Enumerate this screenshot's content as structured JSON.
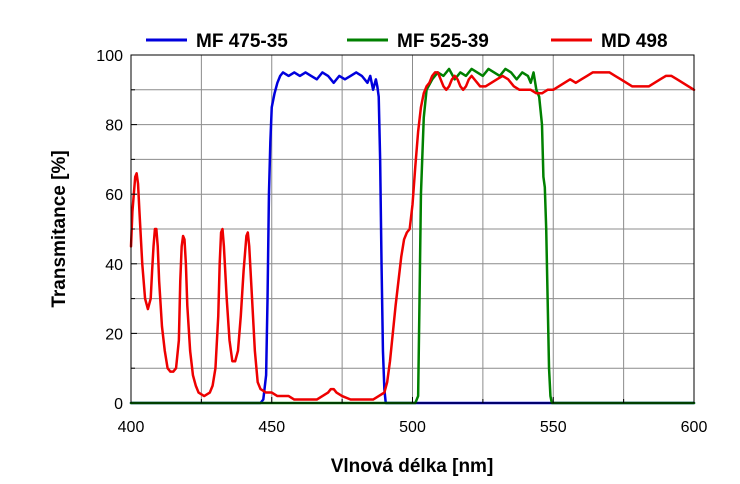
{
  "chart_data": {
    "type": "line",
    "title": "",
    "xlabel": "Vlnová délka [nm]",
    "ylabel": "Transmitance [%]",
    "xlim": [
      400,
      600
    ],
    "ylim": [
      0,
      100
    ],
    "x_ticks": [
      400,
      450,
      500,
      550,
      600
    ],
    "y_ticks": [
      0,
      20,
      40,
      60,
      80,
      100
    ],
    "grid": true,
    "legend_position": "top",
    "series": [
      {
        "name": "MF 475-35",
        "color": "#0000dd",
        "points": [
          [
            400,
            0
          ],
          [
            446,
            0
          ],
          [
            447,
            1
          ],
          [
            448,
            8
          ],
          [
            448.5,
            30
          ],
          [
            449,
            60
          ],
          [
            449.5,
            75
          ],
          [
            450,
            85
          ],
          [
            451,
            89
          ],
          [
            452,
            92
          ],
          [
            453,
            94
          ],
          [
            454,
            95
          ],
          [
            456,
            94
          ],
          [
            458,
            95
          ],
          [
            460,
            94
          ],
          [
            462,
            95
          ],
          [
            464,
            94
          ],
          [
            466,
            93
          ],
          [
            468,
            95
          ],
          [
            470,
            94
          ],
          [
            472,
            92
          ],
          [
            474,
            94
          ],
          [
            476,
            93
          ],
          [
            478,
            94
          ],
          [
            480,
            95
          ],
          [
            482,
            94
          ],
          [
            484,
            92
          ],
          [
            485,
            94
          ],
          [
            486,
            90
          ],
          [
            487,
            93
          ],
          [
            487.5,
            91
          ],
          [
            488,
            88
          ],
          [
            488.5,
            70
          ],
          [
            489,
            40
          ],
          [
            489.5,
            15
          ],
          [
            490,
            4
          ],
          [
            490.5,
            0
          ],
          [
            600,
            0
          ]
        ]
      },
      {
        "name": "MF 525-39",
        "color": "#008000",
        "points": [
          [
            400,
            0
          ],
          [
            501,
            0
          ],
          [
            502,
            2
          ],
          [
            502.5,
            30
          ],
          [
            503,
            60
          ],
          [
            504,
            82
          ],
          [
            505,
            90
          ],
          [
            507,
            93
          ],
          [
            509,
            95
          ],
          [
            511,
            94
          ],
          [
            513,
            96
          ],
          [
            515,
            93
          ],
          [
            517,
            95
          ],
          [
            519,
            94
          ],
          [
            521,
            96
          ],
          [
            523,
            95
          ],
          [
            525,
            94
          ],
          [
            527,
            96
          ],
          [
            529,
            95
          ],
          [
            531,
            94
          ],
          [
            533,
            96
          ],
          [
            535,
            95
          ],
          [
            537,
            93
          ],
          [
            539,
            95
          ],
          [
            541,
            94
          ],
          [
            542,
            92
          ],
          [
            543,
            95
          ],
          [
            544,
            90
          ],
          [
            545,
            88
          ],
          [
            546,
            80
          ],
          [
            546.5,
            65
          ],
          [
            547,
            62
          ],
          [
            547.5,
            50
          ],
          [
            548,
            30
          ],
          [
            548.5,
            10
          ],
          [
            549,
            2
          ],
          [
            549.5,
            0
          ],
          [
            600,
            0
          ]
        ]
      },
      {
        "name": "MD 498",
        "color": "#ee0000",
        "points": [
          [
            400,
            45
          ],
          [
            400.5,
            55
          ],
          [
            401,
            60
          ],
          [
            401.5,
            65
          ],
          [
            402,
            66
          ],
          [
            402.5,
            63
          ],
          [
            403,
            55
          ],
          [
            404,
            40
          ],
          [
            405,
            30
          ],
          [
            406,
            27
          ],
          [
            407,
            30
          ],
          [
            407.5,
            38
          ],
          [
            408,
            45
          ],
          [
            408.5,
            50
          ],
          [
            409,
            50
          ],
          [
            409.5,
            45
          ],
          [
            410,
            35
          ],
          [
            411,
            22
          ],
          [
            412,
            15
          ],
          [
            413,
            10
          ],
          [
            414,
            9
          ],
          [
            415,
            9
          ],
          [
            416,
            10
          ],
          [
            417,
            18
          ],
          [
            417.5,
            35
          ],
          [
            418,
            45
          ],
          [
            418.5,
            48
          ],
          [
            419,
            47
          ],
          [
            419.5,
            40
          ],
          [
            420,
            28
          ],
          [
            421,
            15
          ],
          [
            422,
            8
          ],
          [
            423,
            5
          ],
          [
            424,
            3
          ],
          [
            426,
            2
          ],
          [
            428,
            3
          ],
          [
            429,
            5
          ],
          [
            430,
            10
          ],
          [
            431,
            25
          ],
          [
            431.5,
            40
          ],
          [
            432,
            49
          ],
          [
            432.5,
            50
          ],
          [
            433,
            45
          ],
          [
            434,
            30
          ],
          [
            435,
            18
          ],
          [
            436,
            12
          ],
          [
            437,
            12
          ],
          [
            438,
            15
          ],
          [
            439,
            25
          ],
          [
            440,
            38
          ],
          [
            441,
            48
          ],
          [
            441.5,
            49
          ],
          [
            442,
            45
          ],
          [
            443,
            30
          ],
          [
            444,
            15
          ],
          [
            445,
            6
          ],
          [
            446,
            4
          ],
          [
            448,
            3
          ],
          [
            450,
            3
          ],
          [
            452,
            2
          ],
          [
            454,
            2
          ],
          [
            456,
            2
          ],
          [
            458,
            1
          ],
          [
            460,
            1
          ],
          [
            462,
            1
          ],
          [
            464,
            1
          ],
          [
            466,
            1
          ],
          [
            468,
            2
          ],
          [
            470,
            3
          ],
          [
            471,
            4
          ],
          [
            472,
            4
          ],
          [
            473,
            3
          ],
          [
            475,
            2
          ],
          [
            478,
            1
          ],
          [
            482,
            1
          ],
          [
            486,
            1
          ],
          [
            488,
            2
          ],
          [
            490,
            3
          ],
          [
            491,
            6
          ],
          [
            492,
            12
          ],
          [
            493,
            20
          ],
          [
            494,
            28
          ],
          [
            495,
            35
          ],
          [
            496,
            42
          ],
          [
            497,
            47
          ],
          [
            498,
            49
          ],
          [
            499,
            50
          ],
          [
            500,
            57
          ],
          [
            501,
            68
          ],
          [
            502,
            78
          ],
          [
            503,
            85
          ],
          [
            504,
            89
          ],
          [
            505,
            91
          ],
          [
            506,
            92
          ],
          [
            507,
            94
          ],
          [
            508,
            95
          ],
          [
            509,
            95
          ],
          [
            510,
            93
          ],
          [
            511,
            91
          ],
          [
            512,
            90
          ],
          [
            513,
            91
          ],
          [
            514,
            93
          ],
          [
            515,
            94
          ],
          [
            516,
            93
          ],
          [
            517,
            91
          ],
          [
            518,
            90
          ],
          [
            519,
            91
          ],
          [
            520,
            93
          ],
          [
            521,
            94
          ],
          [
            522,
            93
          ],
          [
            523,
            92
          ],
          [
            524,
            91
          ],
          [
            526,
            91
          ],
          [
            528,
            92
          ],
          [
            530,
            93
          ],
          [
            532,
            94
          ],
          [
            534,
            93
          ],
          [
            536,
            91
          ],
          [
            538,
            90
          ],
          [
            540,
            90
          ],
          [
            542,
            90
          ],
          [
            544,
            89
          ],
          [
            546,
            89
          ],
          [
            548,
            90
          ],
          [
            550,
            90
          ],
          [
            552,
            91
          ],
          [
            554,
            92
          ],
          [
            556,
            93
          ],
          [
            558,
            92
          ],
          [
            560,
            93
          ],
          [
            562,
            94
          ],
          [
            564,
            95
          ],
          [
            566,
            95
          ],
          [
            568,
            95
          ],
          [
            570,
            95
          ],
          [
            572,
            94
          ],
          [
            574,
            93
          ],
          [
            576,
            92
          ],
          [
            578,
            91
          ],
          [
            580,
            91
          ],
          [
            582,
            91
          ],
          [
            584,
            91
          ],
          [
            586,
            92
          ],
          [
            588,
            93
          ],
          [
            590,
            94
          ],
          [
            592,
            94
          ],
          [
            594,
            93
          ],
          [
            596,
            92
          ],
          [
            598,
            91
          ],
          [
            600,
            90
          ]
        ]
      }
    ]
  }
}
